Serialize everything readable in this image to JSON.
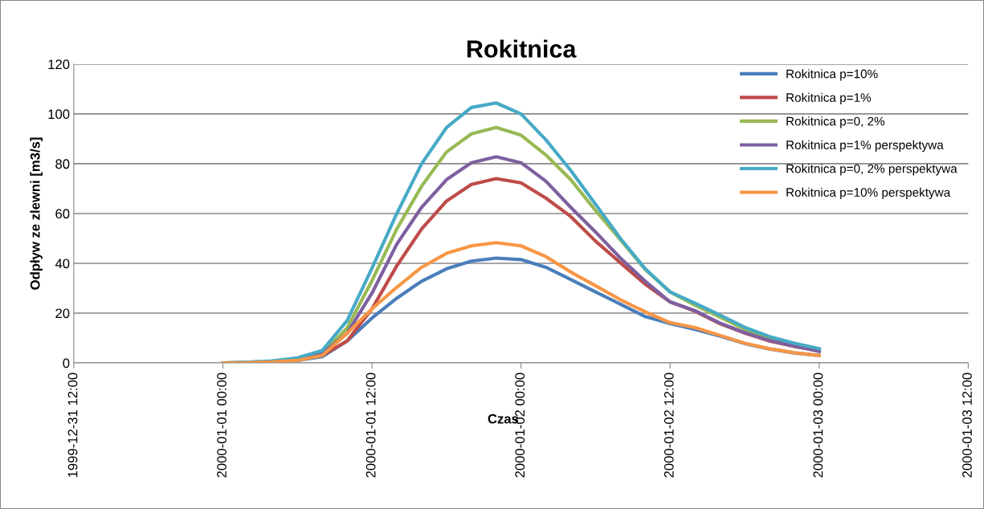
{
  "chart_data": {
    "type": "line",
    "title": "Rokitnica",
    "xlabel": "Czas",
    "ylabel": "Odpływ ze zlewni [m3/s]",
    "x": [
      "2000-01-01T00:00",
      "2000-01-01T02:00",
      "2000-01-01T04:00",
      "2000-01-01T06:00",
      "2000-01-01T08:00",
      "2000-01-01T10:00",
      "2000-01-01T12:00",
      "2000-01-01T14:00",
      "2000-01-01T16:00",
      "2000-01-01T18:00",
      "2000-01-01T20:00",
      "2000-01-01T22:00",
      "2000-01-02T00:00",
      "2000-01-02T02:00",
      "2000-01-02T04:00",
      "2000-01-02T06:00",
      "2000-01-02T08:00",
      "2000-01-02T10:00",
      "2000-01-02T12:00",
      "2000-01-02T14:00",
      "2000-01-02T16:00",
      "2000-01-02T18:00",
      "2000-01-02T20:00",
      "2000-01-02T22:00",
      "2000-01-03T00:00"
    ],
    "series": [
      {
        "name": "Rokitnica p=10%",
        "color": "#4a7ebb",
        "values": [
          0,
          0.1,
          0.4,
          1,
          2.5,
          8.8,
          18,
          26,
          32.8,
          37.8,
          40.9,
          42.1,
          41.5,
          38.4,
          33.5,
          28.5,
          23.6,
          18.6,
          15.8,
          13.5,
          10.8,
          7.8,
          5.6,
          4,
          3
        ]
      },
      {
        "name": "Rokitnica p=1%",
        "color": "#be4b48",
        "values": [
          0,
          0.1,
          0.5,
          1.3,
          3,
          8.8,
          21.7,
          39,
          53.8,
          65,
          71.7,
          74,
          72.3,
          66.2,
          58.8,
          48.9,
          40.2,
          31.6,
          24.5,
          20.8,
          15.8,
          12,
          8.8,
          6.6,
          5
        ]
      },
      {
        "name": "Rokitnica p=0, 2%",
        "color": "#98b954",
        "values": [
          0,
          0.2,
          0.7,
          1.8,
          4,
          14,
          33,
          53.8,
          71,
          84.7,
          92,
          94.6,
          91.5,
          83.5,
          73.6,
          61.2,
          49.5,
          37.5,
          28.5,
          23.2,
          18.4,
          13.5,
          9.8,
          7.1,
          5
        ]
      },
      {
        "name": "Rokitnica p=1% perspektywa",
        "color": "#7d60a0",
        "values": [
          0,
          0.1,
          0.5,
          1.5,
          3.8,
          11.9,
          28,
          47.7,
          62.5,
          73.6,
          80.4,
          82.8,
          80.4,
          73,
          62.5,
          52.6,
          42.1,
          32.8,
          24.5,
          21,
          16,
          12.2,
          9,
          6.8,
          4.6
        ]
      },
      {
        "name": "Rokitnica p=0, 2% perspektywa",
        "color": "#46aac5",
        "values": [
          0,
          0.3,
          0.8,
          2,
          5,
          17,
          38,
          60,
          80,
          94.5,
          102.6,
          104.4,
          100,
          89.6,
          77.3,
          63.7,
          50,
          37.8,
          28.5,
          24,
          19.2,
          14.3,
          10.6,
          7.9,
          5.7
        ]
      },
      {
        "name": "Rokitnica p=10% perspektywa",
        "color": "#f79646",
        "values": [
          0,
          0.1,
          0.4,
          1,
          3,
          11.9,
          21.7,
          30.4,
          38.4,
          44,
          47,
          48.3,
          47,
          42.7,
          36.5,
          31,
          25.4,
          20.5,
          16.2,
          14.2,
          11.1,
          7.9,
          5.7,
          4.1,
          3
        ]
      }
    ],
    "xlim": [
      "1999-12-31T12:00",
      "2000-01-03T12:00"
    ],
    "xticks": [
      {
        "value": "1999-12-31T12:00",
        "label": "1999-12-31 12:00"
      },
      {
        "value": "2000-01-01T00:00",
        "label": "2000-01-01 00:00"
      },
      {
        "value": "2000-01-01T12:00",
        "label": "2000-01-01 12:00"
      },
      {
        "value": "2000-01-02T00:00",
        "label": "2000-01-02 00:00"
      },
      {
        "value": "2000-01-02T12:00",
        "label": "2000-01-02 12:00"
      },
      {
        "value": "2000-01-03T00:00",
        "label": "2000-01-03 00:00"
      },
      {
        "value": "2000-01-03T12:00",
        "label": "2000-01-03 12:00"
      }
    ],
    "ylim": [
      0,
      120
    ],
    "yticks": [
      0,
      20,
      40,
      60,
      80,
      100,
      120
    ],
    "grid": "y",
    "legend": "top right",
    "marker": "none",
    "line_style": "solid"
  }
}
